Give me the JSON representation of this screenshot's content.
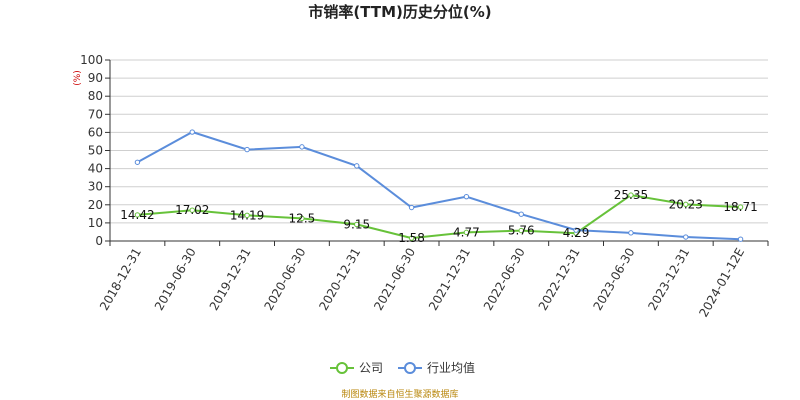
{
  "chart_data": {
    "type": "line",
    "title": "市销率(TTM)历史分位(%)",
    "y_unit": "(%)",
    "ylim": [
      0,
      100
    ],
    "yticks": [
      0,
      10,
      20,
      30,
      40,
      50,
      60,
      70,
      80,
      90,
      100
    ],
    "categories": [
      "2018-12-31",
      "2019-06-30",
      "2019-12-31",
      "2020-06-30",
      "2020-12-31",
      "2021-06-30",
      "2021-12-31",
      "2022-06-30",
      "2022-12-31",
      "2023-06-30",
      "2023-12-31",
      "2024-01-12E"
    ],
    "grid": true,
    "legend_position": "bottom",
    "series": [
      {
        "name": "公司",
        "color": "#67c23a",
        "values": [
          14.42,
          17.02,
          14.19,
          12.5,
          9.15,
          1.58,
          4.77,
          5.76,
          4.29,
          25.35,
          20.23,
          18.71
        ],
        "labels": [
          "14.42",
          "17.02",
          "14.19",
          "12.5",
          "9.15",
          "1.58",
          "4.77",
          "5.76",
          "4.29",
          "25.35",
          "20.23",
          "18.71"
        ]
      },
      {
        "name": "行业均值",
        "color": "#5b8ddb",
        "values": [
          43.5,
          60.2,
          50.5,
          52.0,
          41.5,
          18.5,
          24.5,
          14.8,
          6.0,
          4.5,
          2.2,
          1.0
        ]
      }
    ]
  },
  "footer": {
    "source": "制图数据来自恒生聚源数据库"
  }
}
